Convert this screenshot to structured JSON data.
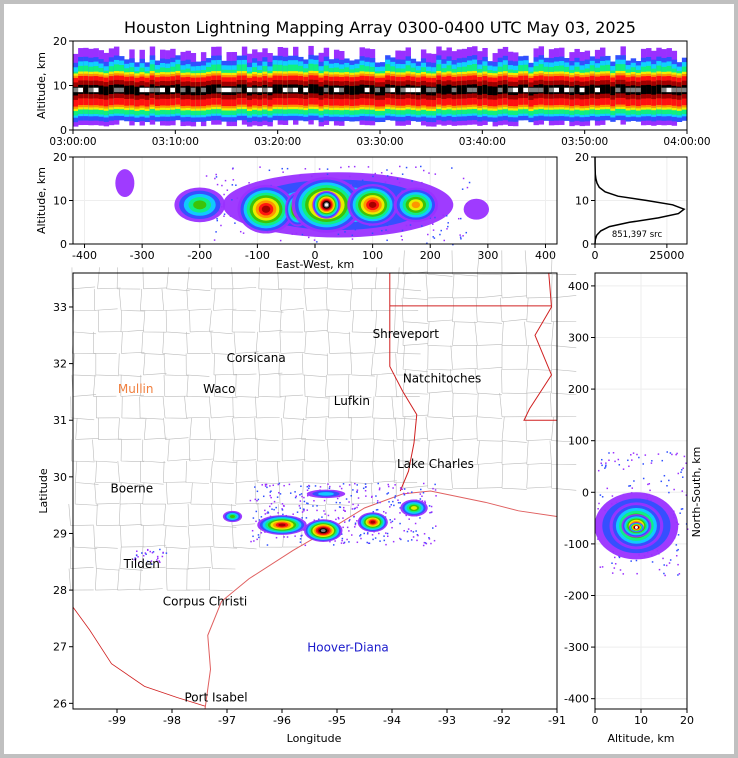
{
  "title": "Houston Lightning Mapping Array 0300-0400 UTC May 03, 2025",
  "colors": {
    "scale": [
      "#9a30ff",
      "#3050ff",
      "#10d0ff",
      "#10f080",
      "#40c000",
      "#f0f000",
      "#ff9000",
      "#ff1010",
      "#a00000",
      "#000000",
      "#808080",
      "#ffffff"
    ],
    "state_border": "#d02020",
    "county_border": "#bbbbbb",
    "coast": "#e06060"
  },
  "chart_data": [
    {
      "name": "time-altitude",
      "type": "heatmap",
      "ylabel": "Altitude, km",
      "ylim": [
        0,
        20
      ],
      "yticks": [
        0,
        10,
        20
      ],
      "xticks": [
        "03:00:00",
        "03:10:00",
        "03:20:00",
        "03:30:00",
        "03:40:00",
        "03:50:00",
        "04:00:00"
      ],
      "band_center_km": 9,
      "band_core_km": [
        8,
        10
      ],
      "band_extent_km": [
        2,
        16
      ]
    },
    {
      "name": "ew-altitude",
      "type": "heatmap",
      "xlabel": "East-West, km",
      "ylabel": "Altitude, km",
      "xlim": [
        -420,
        420
      ],
      "ylim": [
        0,
        20
      ],
      "xticks": [
        -400,
        -300,
        -200,
        -100,
        0,
        100,
        200,
        300,
        400
      ],
      "yticks": [
        0,
        10,
        20
      ],
      "cells": [
        {
          "x": -200,
          "z": 9,
          "w": 40,
          "h": 5,
          "level": 4
        },
        {
          "x": -85,
          "z": 8,
          "w": 45,
          "h": 7,
          "level": 8
        },
        {
          "x": -30,
          "z": 8,
          "w": 20,
          "h": 5,
          "level": 7
        },
        {
          "x": 20,
          "z": 9,
          "w": 55,
          "h": 8,
          "level": 9
        },
        {
          "x": 20,
          "z": 9,
          "w": 22,
          "h": 4,
          "level": 11
        },
        {
          "x": 100,
          "z": 9,
          "w": 40,
          "h": 6,
          "level": 8
        },
        {
          "x": 175,
          "z": 9,
          "w": 35,
          "h": 5,
          "level": 6
        },
        {
          "x": -330,
          "z": 14,
          "w": 15,
          "h": 4,
          "level": 0
        },
        {
          "x": 280,
          "z": 8,
          "w": 20,
          "h": 3,
          "level": 0
        }
      ]
    },
    {
      "name": "altitude-histogram",
      "type": "line",
      "annotation": "851,397 src",
      "xlim": [
        0,
        32000
      ],
      "xticks": [
        0,
        25000
      ],
      "ylim": [
        0,
        20
      ],
      "yticks": [
        0,
        10,
        20
      ],
      "x": [
        0,
        100,
        600,
        2000,
        5000,
        12000,
        22000,
        29000,
        31000,
        27000,
        18000,
        8000,
        3500,
        1500,
        700,
        300,
        120,
        40,
        0
      ],
      "y": [
        0,
        1,
        2,
        3,
        4,
        5,
        6,
        7,
        8,
        9,
        10,
        11,
        12,
        13,
        14,
        15,
        16,
        18,
        20
      ]
    },
    {
      "name": "plan-view-map",
      "type": "scatter",
      "xlabel": "Longitude",
      "ylabel": "Latitude",
      "xlim": [
        -99.8,
        -91
      ],
      "ylim": [
        25.9,
        33.6
      ],
      "xticks": [
        -99,
        -98,
        -97,
        -96,
        -95,
        -94,
        -93,
        -92,
        -91
      ],
      "yticks": [
        26,
        27,
        28,
        29,
        30,
        31,
        32,
        33
      ],
      "places": [
        {
          "name": "Shreveport",
          "lon": -93.75,
          "lat": 32.52,
          "color": "#000000"
        },
        {
          "name": "Corsicana",
          "lon": -96.47,
          "lat": 32.1,
          "color": "#000000"
        },
        {
          "name": "Natchitoches",
          "lon": -93.09,
          "lat": 31.74,
          "color": "#000000"
        },
        {
          "name": "Mullin",
          "lon": -98.66,
          "lat": 31.55,
          "color": "#f08040"
        },
        {
          "name": "Waco",
          "lon": -97.14,
          "lat": 31.55,
          "color": "#000000"
        },
        {
          "name": "Lufkin",
          "lon": -94.73,
          "lat": 31.34,
          "color": "#000000"
        },
        {
          "name": "Lake Charles",
          "lon": -93.21,
          "lat": 30.23,
          "color": "#000000"
        },
        {
          "name": "Boerne",
          "lon": -98.73,
          "lat": 29.79,
          "color": "#000000"
        },
        {
          "name": "Tilden",
          "lon": -98.55,
          "lat": 28.46,
          "color": "#000000"
        },
        {
          "name": "Corpus Christi",
          "lon": -97.4,
          "lat": 27.8,
          "color": "#000000"
        },
        {
          "name": "Hoover-Diana",
          "lon": -94.8,
          "lat": 26.99,
          "color": "#1a1acc"
        },
        {
          "name": "Port Isabel",
          "lon": -97.2,
          "lat": 26.1,
          "color": "#000000"
        }
      ],
      "cells": [
        {
          "lon": -96.0,
          "lat": 29.15,
          "w": 0.9,
          "h": 0.35,
          "level": 8
        },
        {
          "lon": -95.25,
          "lat": 29.05,
          "w": 0.7,
          "h": 0.4,
          "level": 10
        },
        {
          "lon": -94.35,
          "lat": 29.2,
          "w": 0.55,
          "h": 0.35,
          "level": 8
        },
        {
          "lon": -93.6,
          "lat": 29.45,
          "w": 0.5,
          "h": 0.3,
          "level": 5
        },
        {
          "lon": -96.9,
          "lat": 29.3,
          "w": 0.35,
          "h": 0.2,
          "level": 4
        },
        {
          "lon": -95.2,
          "lat": 29.7,
          "w": 0.7,
          "h": 0.15,
          "level": 2
        }
      ]
    },
    {
      "name": "altitude-ns",
      "type": "heatmap",
      "xlabel": "Altitude, km",
      "ylabel": "North-South, km",
      "xlim": [
        0,
        20
      ],
      "ylim": [
        -420,
        425
      ],
      "xticks": [
        0,
        10,
        20
      ],
      "yticks": [
        -400,
        -300,
        -200,
        -100,
        0,
        100,
        200,
        300,
        400
      ],
      "cells": [
        {
          "z": 9,
          "y": -65,
          "w": 14,
          "h": 100,
          "level": 4
        },
        {
          "z": 9,
          "y": -65,
          "w": 9,
          "h": 70,
          "level": 7
        },
        {
          "z": 9,
          "y": -65,
          "w": 5,
          "h": 35,
          "level": 9
        },
        {
          "z": 9,
          "y": -68,
          "w": 2.5,
          "h": 15,
          "level": 11
        }
      ]
    }
  ]
}
